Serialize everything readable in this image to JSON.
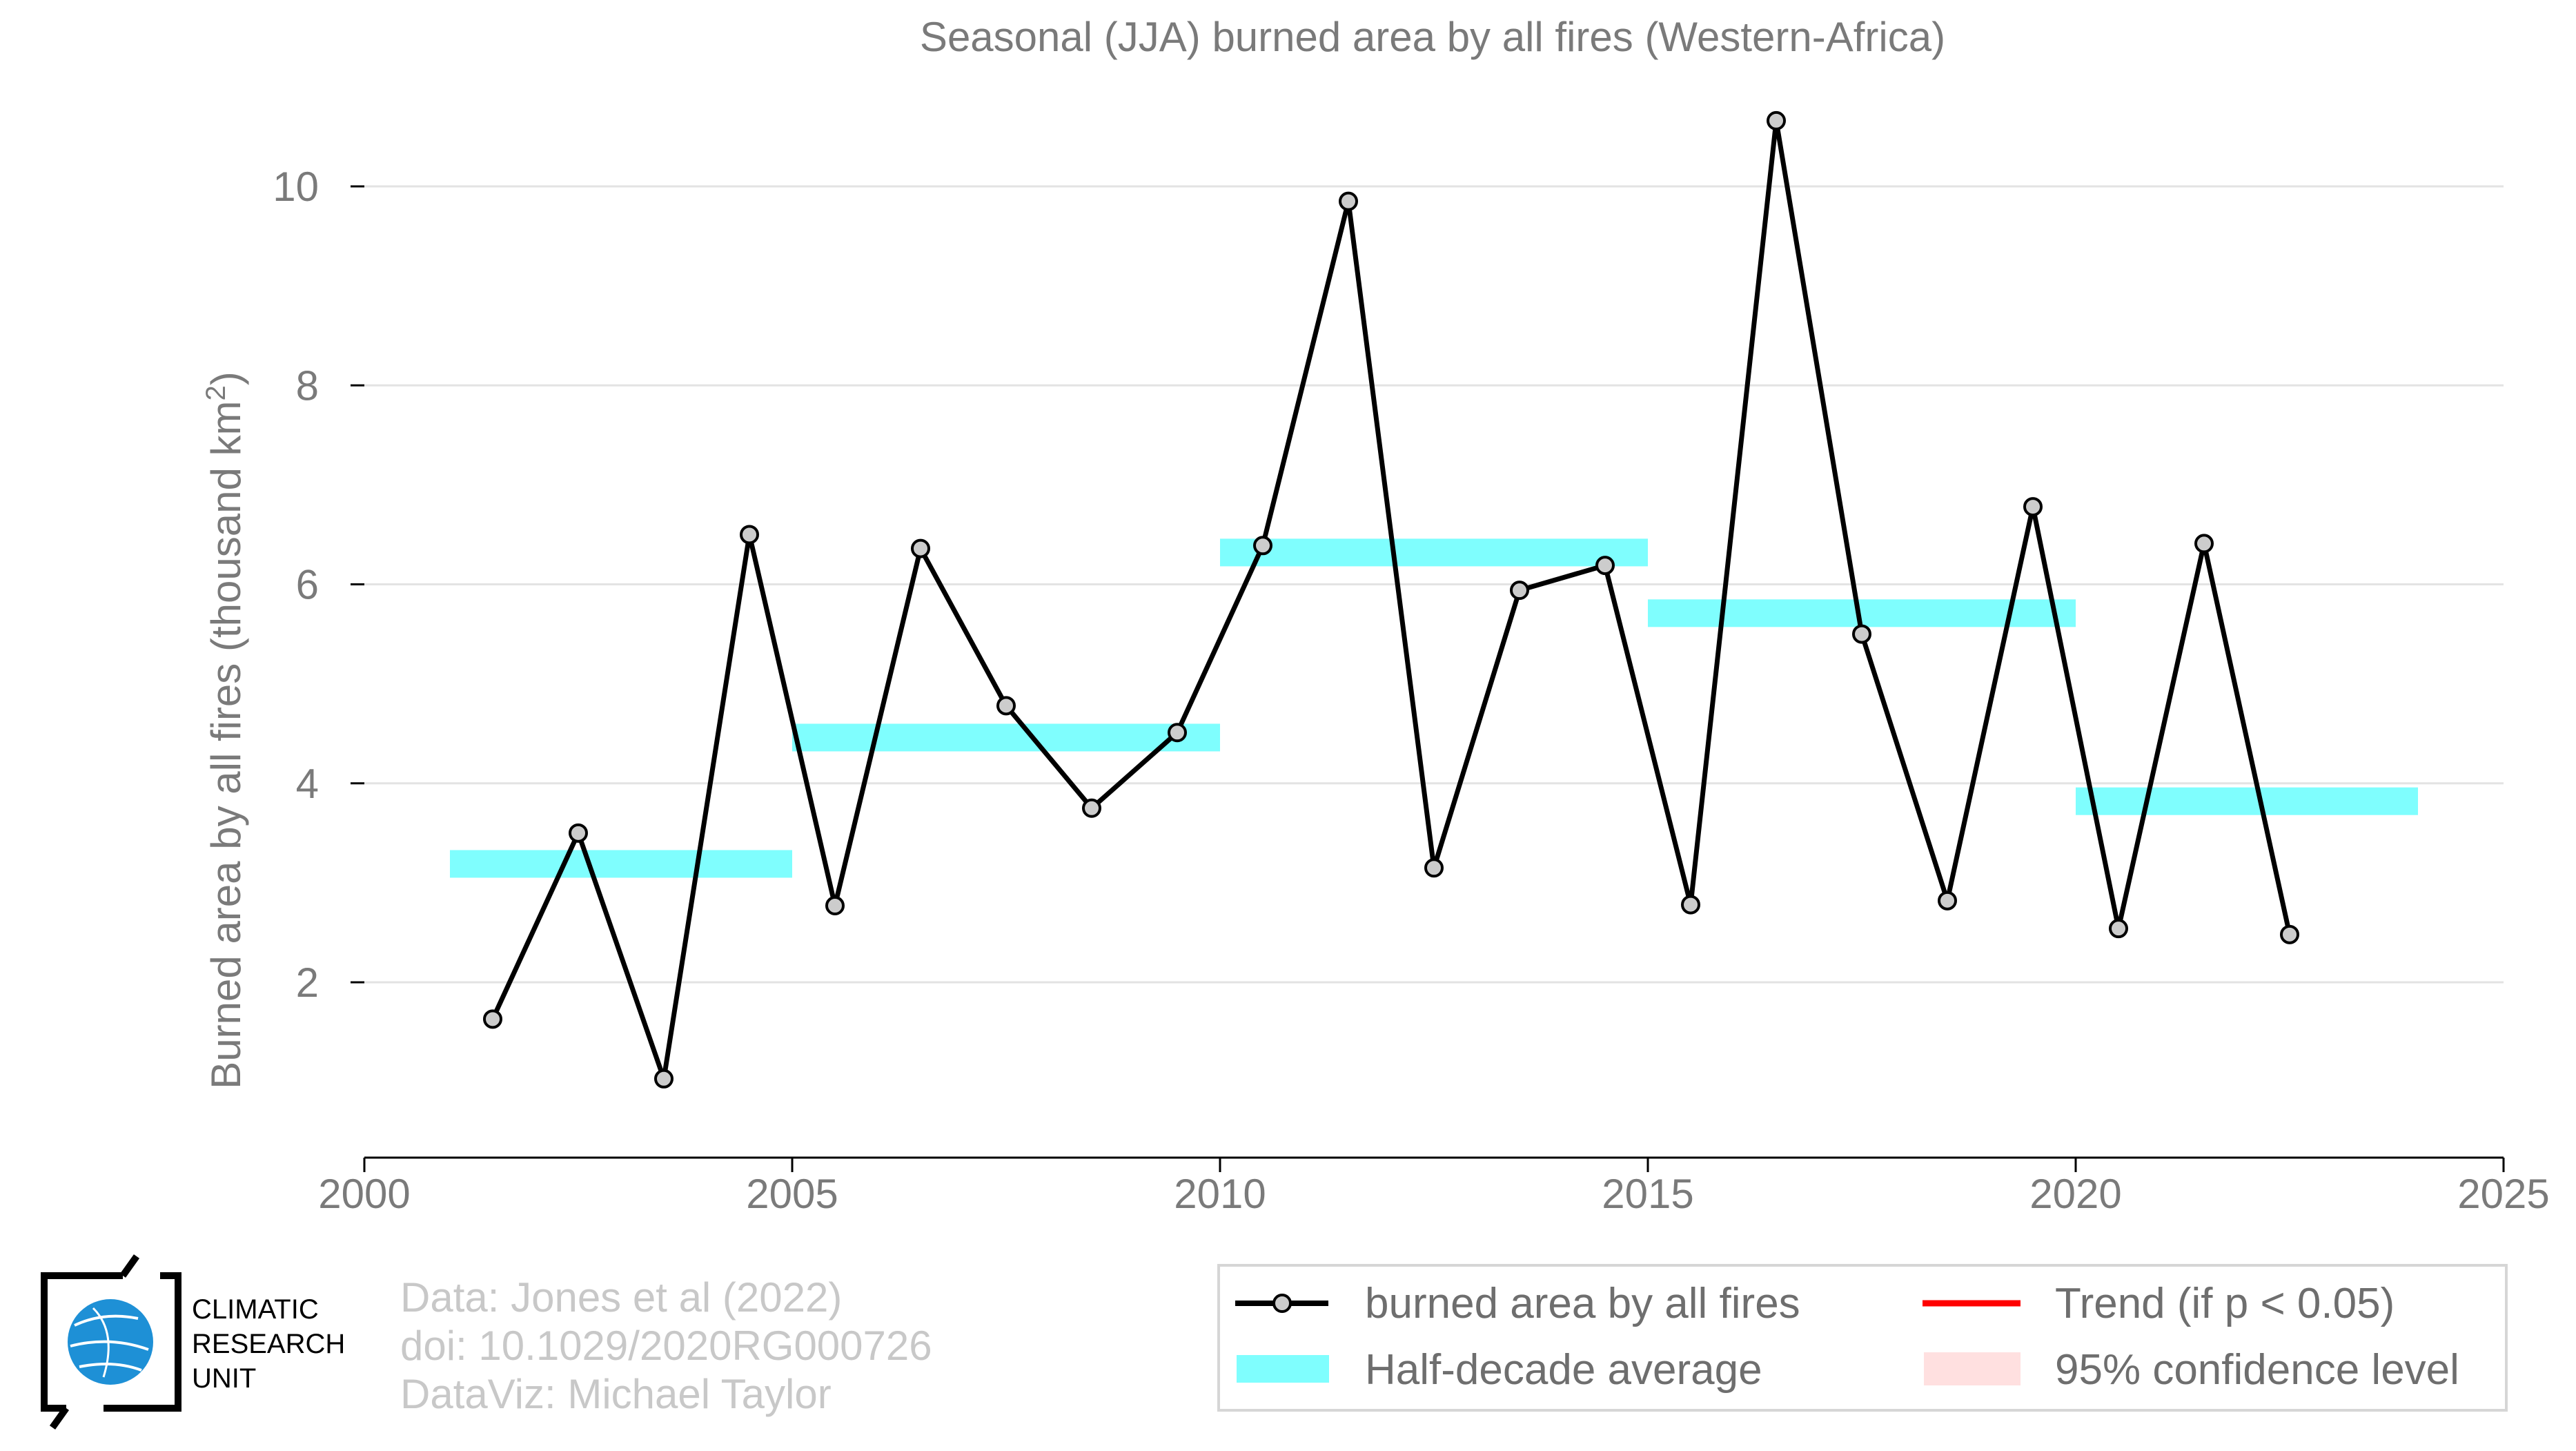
{
  "chart_data": {
    "type": "line",
    "title": "Seasonal (JJA) burned area by all fires (Western-Africa)",
    "ylabel": "Burned area by all fires (thousand km",
    "ylabel_superscript": "2",
    "ylabel_suffix": ")",
    "xlabel": "",
    "xlim": [
      2000,
      2025
    ],
    "ylim": [
      0.3,
      10.9
    ],
    "x_ticks": [
      2000,
      2005,
      2010,
      2015,
      2020,
      2025
    ],
    "y_ticks": [
      2,
      4,
      6,
      8,
      10
    ],
    "grid": "horizontal",
    "legend_placement": "bottom-right",
    "series": [
      {
        "name": "burned area by all fires",
        "kind": "line-with-markers",
        "color": "#000000",
        "marker_fill": "#cccccc",
        "x": [
          2001.5,
          2002.5,
          2003.5,
          2004.5,
          2005.5,
          2006.5,
          2007.5,
          2008.5,
          2009.5,
          2010.5,
          2011.5,
          2012.5,
          2013.5,
          2014.5,
          2015.5,
          2016.5,
          2017.5,
          2018.5,
          2019.5,
          2020.5,
          2021.5,
          2022.5
        ],
        "values": [
          1.63,
          3.5,
          1.03,
          6.5,
          2.77,
          6.36,
          4.78,
          3.75,
          4.51,
          6.39,
          9.85,
          3.15,
          5.94,
          6.19,
          2.78,
          10.66,
          5.5,
          2.82,
          6.78,
          2.54,
          6.41,
          2.48
        ]
      },
      {
        "name": "Half-decade average",
        "kind": "segments",
        "color": "#7ffefe",
        "segments": [
          {
            "x0": 2001,
            "x1": 2005,
            "value": 3.19
          },
          {
            "x0": 2005,
            "x1": 2010,
            "value": 4.46
          },
          {
            "x0": 2010,
            "x1": 2015,
            "value": 6.32
          },
          {
            "x0": 2015,
            "x1": 2020,
            "value": 5.71
          },
          {
            "x0": 2020,
            "x1": 2024,
            "value": 3.82
          }
        ]
      }
    ],
    "legend": [
      {
        "label": "burned area by all fires",
        "symbol": "line-marker",
        "color": "#000000"
      },
      {
        "label": "Trend (if p < 0.05)",
        "symbol": "line",
        "color": "#ff0000"
      },
      {
        "label": "Half-decade average",
        "symbol": "band",
        "color": "#7ffefe"
      },
      {
        "label": "95% confidence level",
        "symbol": "band",
        "color": "#ffe0e0"
      }
    ]
  },
  "credits": {
    "line1": "Data: Jones et al (2022)",
    "line2": "doi: 10.1029/2020RG000726",
    "line3": "DataViz: Michael Taylor"
  },
  "logo": {
    "line1": "CLIMATIC",
    "line2": "RESEARCH",
    "line3": "UNIT",
    "globe_color": "#1e90d6"
  }
}
